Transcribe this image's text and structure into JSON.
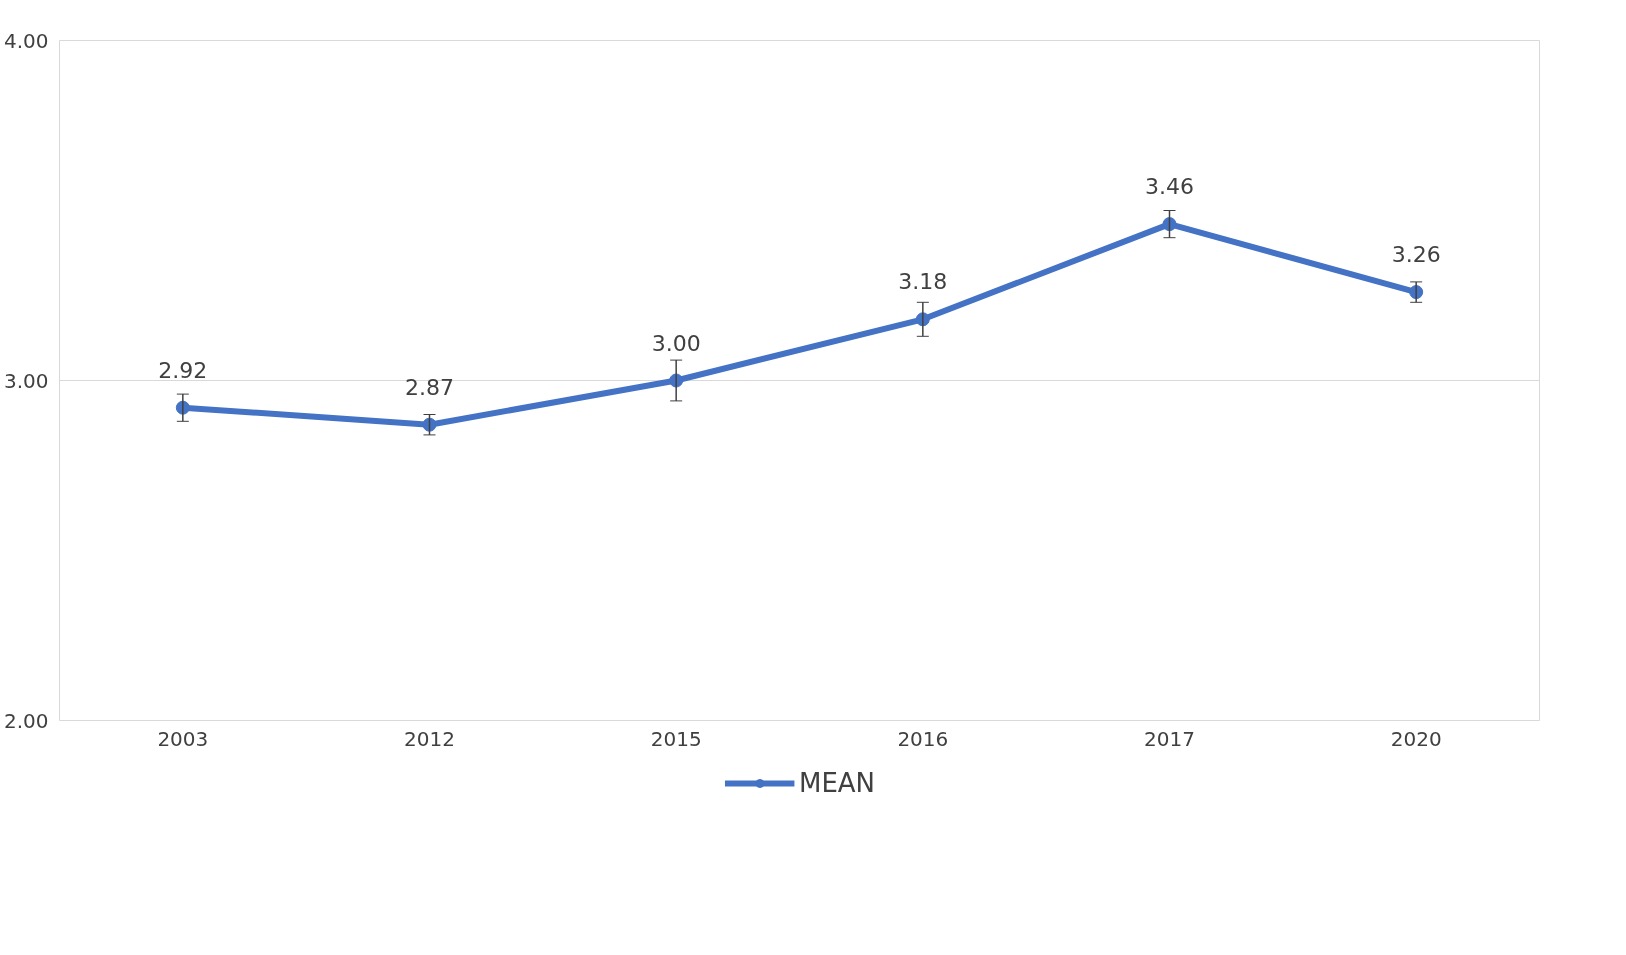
{
  "chart_data": {
    "type": "line",
    "categories": [
      "2003",
      "2012",
      "2015",
      "2016",
      "2017",
      "2020"
    ],
    "series": [
      {
        "name": "MEAN",
        "color": "#4472c4",
        "values": [
          2.92,
          2.87,
          3.0,
          3.18,
          3.46,
          3.26
        ],
        "errors": [
          0.04,
          0.03,
          0.06,
          0.05,
          0.04,
          0.03
        ],
        "value_labels": [
          "2.92",
          "2.87",
          "3.00",
          "3.18",
          "3.46",
          "3.26"
        ]
      }
    ],
    "ylim": [
      2,
      4
    ],
    "yticks": [
      {
        "value": 2,
        "label": "2.00"
      },
      {
        "value": 3,
        "label": "3.00"
      },
      {
        "value": 4,
        "label": "4.00"
      }
    ],
    "grid": "y",
    "legend": "bottom",
    "marker": "circle",
    "line_style": "solid"
  }
}
